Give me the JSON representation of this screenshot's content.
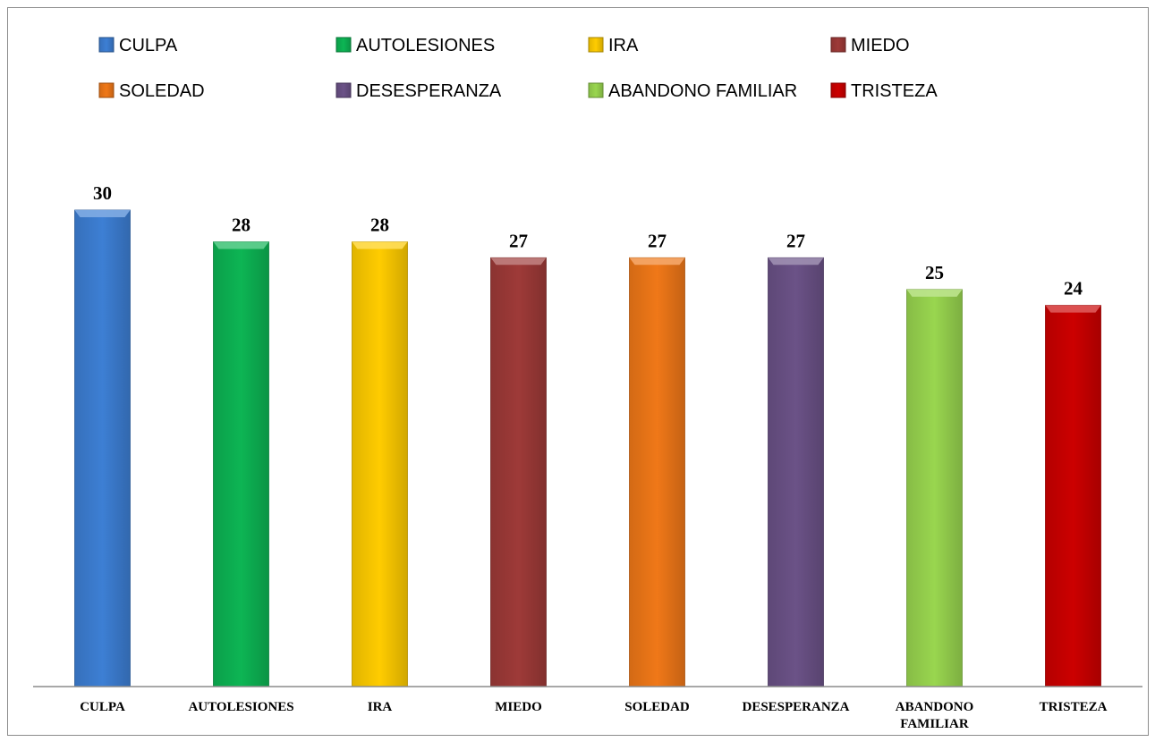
{
  "chart_data": {
    "type": "bar",
    "title": "",
    "xlabel": "",
    "ylabel": "",
    "ylim": [
      0,
      30
    ],
    "grid": false,
    "legend_position": "top",
    "categories": [
      "CULPA",
      "AUTOLESIONES",
      "IRA",
      "MIEDO",
      "SOLEDAD",
      "DESESPERANZA",
      "ABANDONO FAMILIAR",
      "TRISTEZA"
    ],
    "category_label_lines": [
      [
        "CULPA"
      ],
      [
        "AUTOLESIONES"
      ],
      [
        "IRA"
      ],
      [
        "MIEDO"
      ],
      [
        "SOLEDAD"
      ],
      [
        "DESESPERANZA"
      ],
      [
        "ABANDONO",
        "FAMILIAR"
      ],
      [
        "TRISTEZA"
      ]
    ],
    "values": [
      30,
      28,
      28,
      27,
      27,
      27,
      25,
      24
    ],
    "data_labels": [
      "30",
      "28",
      "28",
      "27",
      "27",
      "27",
      "25",
      "24"
    ],
    "colors": [
      "#3d7fd4",
      "#0db554",
      "#ffcc00",
      "#9e3a38",
      "#f07818",
      "#6b5287",
      "#99d64f",
      "#cc0000"
    ],
    "legend": [
      "CULPA",
      "AUTOLESIONES",
      "IRA",
      "MIEDO",
      "SOLEDAD",
      "DESESPERANZA",
      "ABANDONO FAMILIAR",
      "TRISTEZA"
    ]
  }
}
